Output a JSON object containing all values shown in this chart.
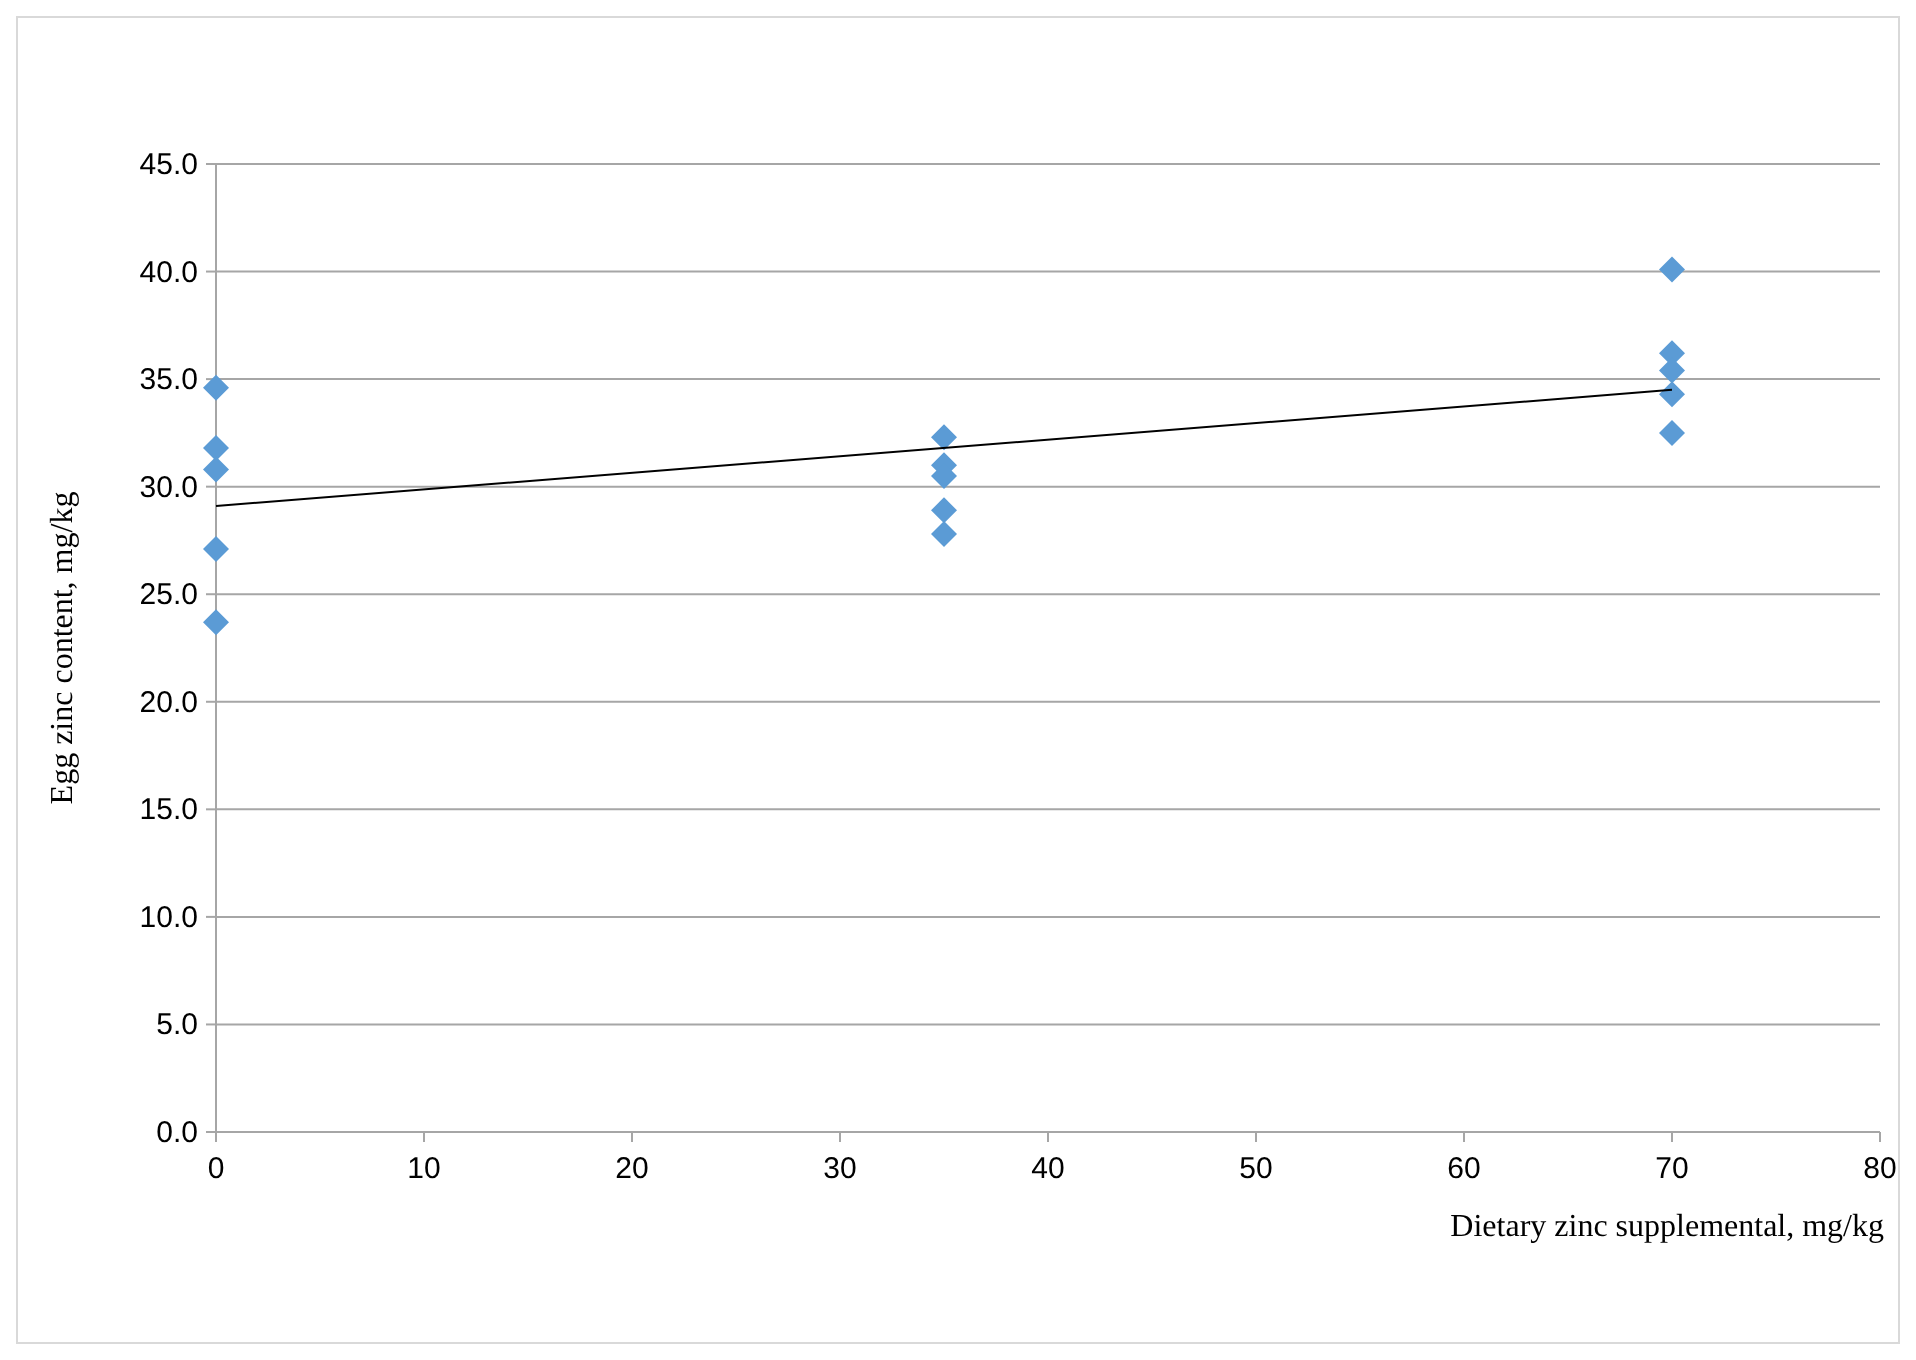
{
  "chart_data": {
    "type": "scatter",
    "xlabel": "Dietary zinc supplemental, mg/kg",
    "ylabel": "Egg zinc content, mg/kg",
    "xlim": [
      0,
      80
    ],
    "xticks": [
      0,
      10,
      20,
      30,
      40,
      50,
      60,
      70,
      80
    ],
    "ylim": [
      0,
      45
    ],
    "yticks": [
      {
        "value": 0,
        "label": "0.0"
      },
      {
        "value": 5,
        "label": "5.0"
      },
      {
        "value": 10,
        "label": "10.0"
      },
      {
        "value": 15,
        "label": "15.0"
      },
      {
        "value": 20,
        "label": "20.0"
      },
      {
        "value": 25,
        "label": "25.0"
      },
      {
        "value": 30,
        "label": "30.0"
      },
      {
        "value": 35,
        "label": "35.0"
      },
      {
        "value": 40,
        "label": "40.0"
      },
      {
        "value": 45,
        "label": "45.0"
      }
    ],
    "grid": "y",
    "marker": "diamond",
    "series": [
      {
        "color": "#5b9bd5",
        "x": [
          0,
          0,
          0,
          0,
          0,
          35,
          35,
          35,
          35,
          35,
          70,
          70,
          70,
          70,
          70
        ],
        "values": [
          34.6,
          31.8,
          30.8,
          27.1,
          23.7,
          32.3,
          31.0,
          30.5,
          28.9,
          27.8,
          40.1,
          36.2,
          35.4,
          34.3,
          32.5
        ]
      },
      {
        "type": "line",
        "color": "#000000",
        "marker": "none",
        "x": [
          0,
          70
        ],
        "values": [
          29.1,
          34.5
        ]
      }
    ]
  }
}
